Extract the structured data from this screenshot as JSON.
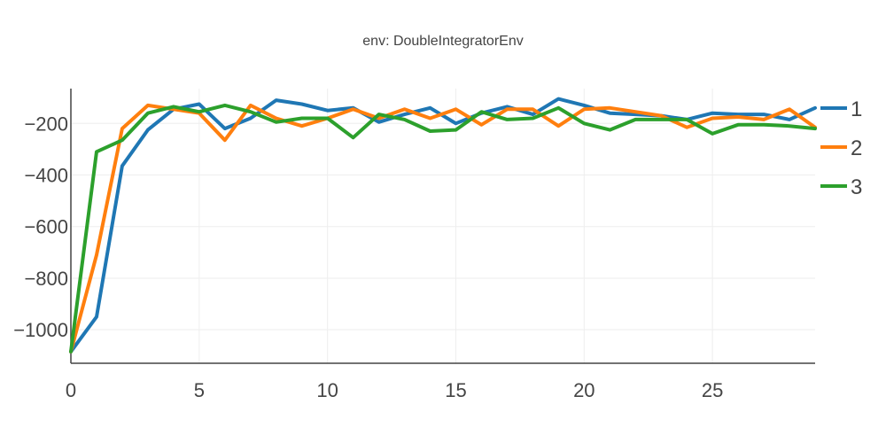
{
  "chart_data": {
    "type": "line",
    "title": "env: DoubleIntegratorEnv",
    "xlabel": "",
    "ylabel": "",
    "xlim": [
      0,
      29
    ],
    "ylim": [
      -1130,
      -65
    ],
    "x_ticks": [
      0,
      5,
      10,
      15,
      20,
      25
    ],
    "y_ticks": [
      -1000,
      -800,
      -600,
      -400,
      -200
    ],
    "grid": true,
    "legend_position": "right",
    "x": [
      0,
      1,
      2,
      3,
      4,
      5,
      6,
      7,
      8,
      9,
      10,
      11,
      12,
      13,
      14,
      15,
      16,
      17,
      18,
      19,
      20,
      21,
      22,
      23,
      24,
      25,
      26,
      27,
      28,
      29
    ],
    "series": [
      {
        "name": "1",
        "color": "#1f77b4",
        "values": [
          -1085,
          -950,
          -365,
          -225,
          -145,
          -125,
          -220,
          -180,
          -110,
          -125,
          -150,
          -140,
          -195,
          -165,
          -140,
          -200,
          -160,
          -135,
          -165,
          -105,
          -130,
          -160,
          -165,
          -170,
          -185,
          -160,
          -165,
          -165,
          -185,
          -140
        ]
      },
      {
        "name": "2",
        "color": "#ff7f0e",
        "values": [
          -1085,
          -710,
          -220,
          -130,
          -145,
          -160,
          -265,
          -130,
          -180,
          -210,
          -180,
          -145,
          -180,
          -145,
          -180,
          -145,
          -205,
          -145,
          -145,
          -210,
          -145,
          -140,
          -155,
          -170,
          -215,
          -180,
          -175,
          -185,
          -145,
          -215
        ]
      },
      {
        "name": "3",
        "color": "#2ca02c",
        "values": [
          -1085,
          -310,
          -265,
          -160,
          -135,
          -155,
          -130,
          -155,
          -195,
          -180,
          -180,
          -255,
          -165,
          -185,
          -230,
          -225,
          -155,
          -185,
          -180,
          -140,
          -200,
          -225,
          -185,
          -185,
          -185,
          -240,
          -205,
          -205,
          -210,
          -220
        ]
      }
    ]
  }
}
